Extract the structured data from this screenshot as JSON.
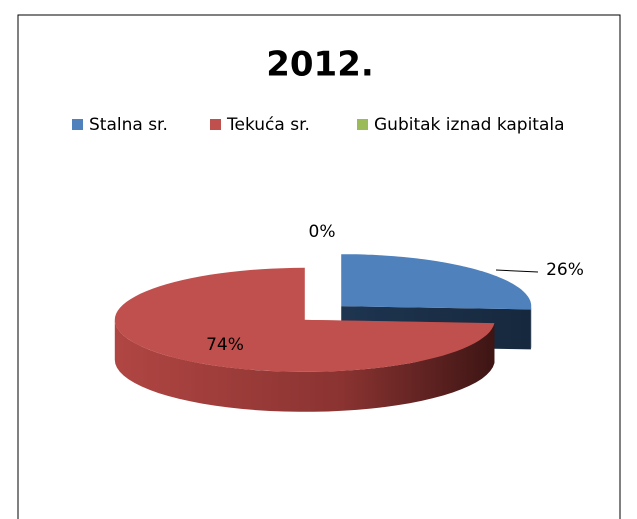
{
  "chart_data": {
    "type": "pie",
    "title": "2012.",
    "categories": [
      "Stalna sr.",
      "Tekuća sr.",
      "Gubitak iznad kapitala"
    ],
    "values": [
      26,
      74,
      0
    ],
    "value_labels": [
      "26%",
      "74%",
      "0%"
    ],
    "colors": [
      "#4f81bd",
      "#c0504d",
      "#9bbb59"
    ],
    "legend": "top"
  }
}
